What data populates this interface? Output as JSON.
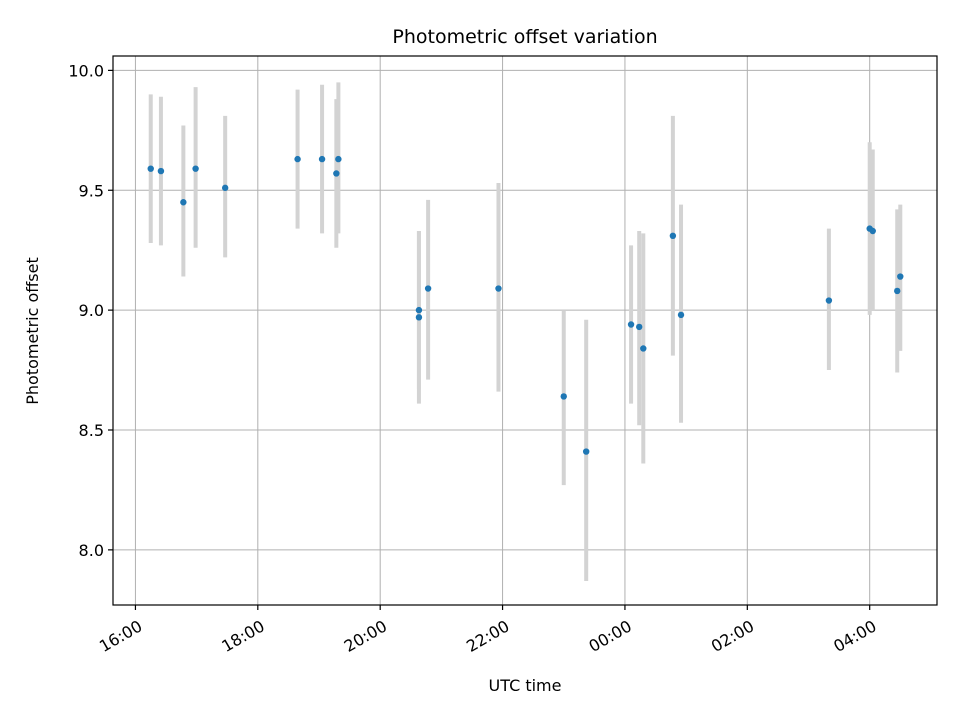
{
  "chart_data": {
    "type": "scatter",
    "title": "Photometric offset variation",
    "xlabel": "UTC time",
    "ylabel": "Photometric offset",
    "grid": true,
    "x_ticks": [
      "16:00",
      "18:00",
      "20:00",
      "22:00",
      "00:00",
      "02:00",
      "04:00"
    ],
    "y_ticks": [
      "8.0",
      "8.5",
      "9.0",
      "9.5",
      "10.0"
    ],
    "xlim": [
      "15:38",
      "05:06"
    ],
    "ylim": [
      7.77,
      10.06
    ],
    "colors": {
      "point": "#1f77b4",
      "errorbar": "#d3d3d3",
      "grid": "#b0b0b0"
    },
    "series": [
      {
        "points": [
          {
            "x": "16:15",
            "y": 9.59,
            "lo": 9.28,
            "hi": 9.9
          },
          {
            "x": "16:25",
            "y": 9.58,
            "lo": 9.27,
            "hi": 9.89
          },
          {
            "x": "16:47",
            "y": 9.45,
            "lo": 9.14,
            "hi": 9.77
          },
          {
            "x": "16:59",
            "y": 9.59,
            "lo": 9.26,
            "hi": 9.93
          },
          {
            "x": "17:28",
            "y": 9.51,
            "lo": 9.22,
            "hi": 9.81
          },
          {
            "x": "18:39",
            "y": 9.63,
            "lo": 9.34,
            "hi": 9.92
          },
          {
            "x": "19:03",
            "y": 9.63,
            "lo": 9.32,
            "hi": 9.94
          },
          {
            "x": "19:17",
            "y": 9.57,
            "lo": 9.26,
            "hi": 9.88
          },
          {
            "x": "19:19",
            "y": 9.63,
            "lo": 9.32,
            "hi": 9.95
          },
          {
            "x": "20:38",
            "y": 9.0,
            "lo": 8.67,
            "hi": 9.33
          },
          {
            "x": "20:38",
            "y": 8.97,
            "lo": 8.61,
            "hi": 9.33
          },
          {
            "x": "20:47",
            "y": 9.09,
            "lo": 8.71,
            "hi": 9.46
          },
          {
            "x": "21:56",
            "y": 9.09,
            "lo": 8.66,
            "hi": 9.53
          },
          {
            "x": "23:00",
            "y": 8.64,
            "lo": 8.27,
            "hi": 9.0
          },
          {
            "x": "23:22",
            "y": 8.41,
            "lo": 7.87,
            "hi": 8.96
          },
          {
            "x": "00:06",
            "y": 8.94,
            "lo": 8.61,
            "hi": 9.27
          },
          {
            "x": "00:14",
            "y": 8.93,
            "lo": 8.52,
            "hi": 9.33
          },
          {
            "x": "00:18",
            "y": 8.84,
            "lo": 8.36,
            "hi": 9.32
          },
          {
            "x": "00:47",
            "y": 9.31,
            "lo": 8.81,
            "hi": 9.81
          },
          {
            "x": "00:55",
            "y": 8.98,
            "lo": 8.53,
            "hi": 9.44
          },
          {
            "x": "03:20",
            "y": 9.04,
            "lo": 8.75,
            "hi": 9.34
          },
          {
            "x": "04:00",
            "y": 9.34,
            "lo": 8.98,
            "hi": 9.7
          },
          {
            "x": "04:03",
            "y": 9.33,
            "lo": 9.0,
            "hi": 9.67
          },
          {
            "x": "04:27",
            "y": 9.08,
            "lo": 8.74,
            "hi": 9.42
          },
          {
            "x": "04:30",
            "y": 9.14,
            "lo": 8.83,
            "hi": 9.44
          }
        ]
      }
    ]
  }
}
